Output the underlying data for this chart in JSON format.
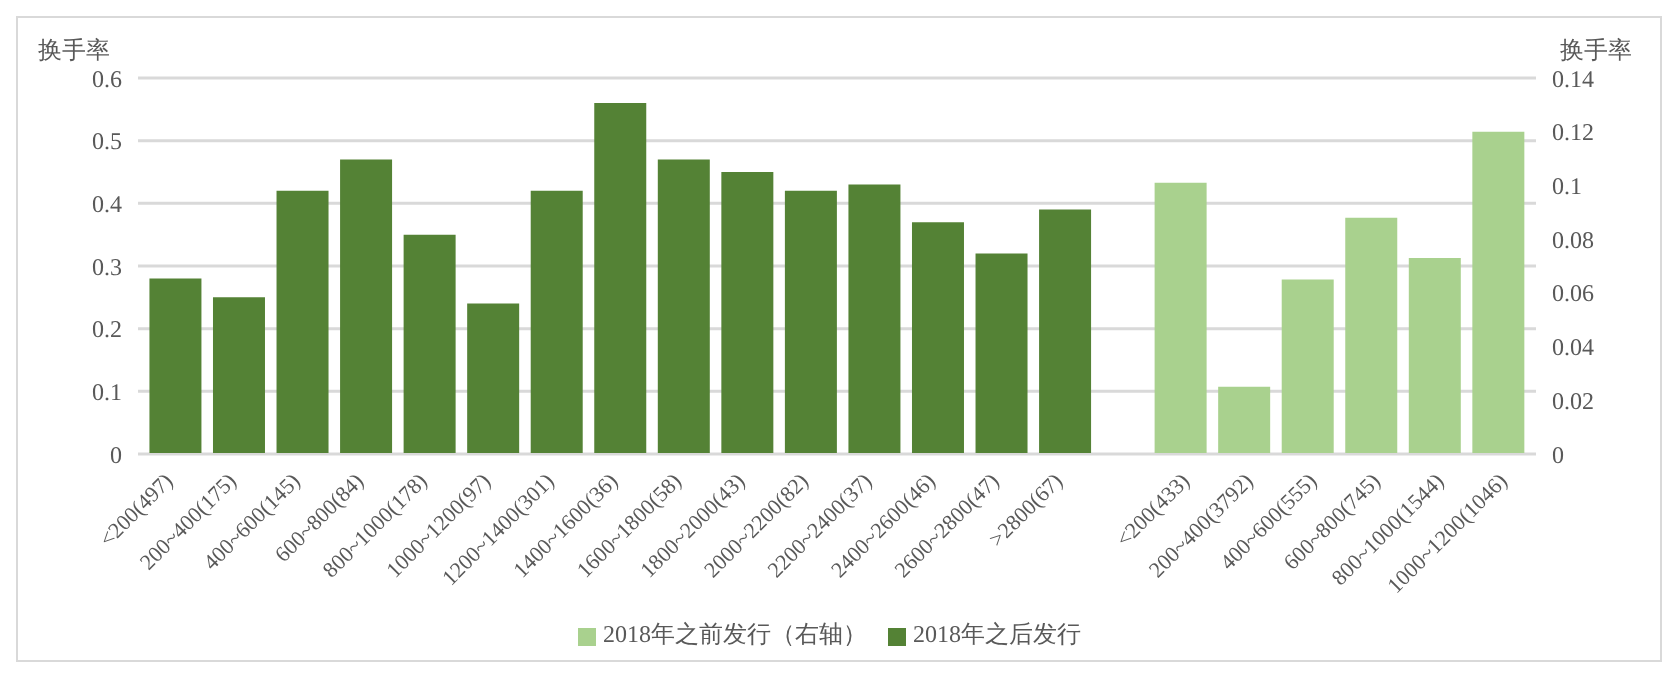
{
  "chart_data": {
    "type": "bar",
    "ylabel": "换手率",
    "y2label": "换手率",
    "categories": [
      "<200(497)",
      "200~400(175)",
      "400~600(145)",
      "600~800(84)",
      "800~1000(178)",
      "1000~1200(97)",
      "1200~1400(301)",
      "1400~1600(36)",
      "1600~1800(58)",
      "1800~2000(43)",
      "2000~2200(82)",
      "2200~2400(37)",
      "2400~2600(46)",
      "2600~2800(47)",
      ">2800(67)",
      null,
      "<200(433)",
      "200~400(3792)",
      "400~600(555)",
      "600~800(745)",
      "800~1000(1544)",
      "1000~1200(1046)"
    ],
    "series": [
      {
        "name": "2018年之后发行",
        "color": "#548235",
        "values": [
          0.28,
          0.25,
          0.42,
          0.47,
          0.35,
          0.24,
          0.42,
          0.56,
          0.47,
          0.45,
          0.42,
          0.43,
          0.37,
          0.32,
          0.39,
          null,
          null,
          null,
          null,
          null,
          null,
          null
        ]
      },
      {
        "name": "2018年之前发行（右轴）",
        "color": "#a9d18e",
        "axis": "y2",
        "values": [
          null,
          null,
          null,
          null,
          null,
          null,
          null,
          null,
          null,
          null,
          null,
          null,
          null,
          null,
          null,
          null,
          0.101,
          0.025,
          0.065,
          0.088,
          0.073,
          0.12
        ]
      }
    ],
    "ylim": [
      0,
      0.6
    ],
    "yticks": [
      0,
      0.1,
      0.2,
      0.3,
      0.4,
      0.5,
      0.6
    ],
    "y2lim": [
      0,
      0.14
    ],
    "y2ticks": [
      0,
      0.02,
      0.04,
      0.06,
      0.08,
      0.1,
      0.12,
      0.14
    ],
    "grid": "y",
    "legend": "bottom"
  }
}
